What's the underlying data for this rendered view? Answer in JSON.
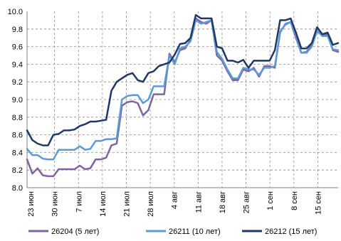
{
  "chart_data": {
    "type": "line",
    "title": "",
    "xlabel": "",
    "ylabel": "",
    "ylim": [
      8.0,
      10.0
    ],
    "yticks": [
      "8.0",
      "8.2",
      "8.4",
      "8.6",
      "8.8",
      "9.0",
      "9.2",
      "9.4",
      "9.6",
      "9.8",
      "10.0"
    ],
    "x_tick_labels": [
      "23 июн",
      "30 июн",
      "7 июл",
      "14 июл",
      "21 июл",
      "28 июл",
      "4 авг",
      "11 авг",
      "18 авг",
      "25 авг",
      "1 сен",
      "8 сен",
      "15 сен"
    ],
    "grid": true,
    "legend_position": "bottom",
    "x_points": 60,
    "series": [
      {
        "name": "26204 (5 лет)",
        "color": "#8064a2",
        "values": [
          8.32,
          8.16,
          8.22,
          8.14,
          8.13,
          8.13,
          8.21,
          8.21,
          8.21,
          8.21,
          8.25,
          8.21,
          8.22,
          8.32,
          8.32,
          8.34,
          8.48,
          8.5,
          8.93,
          8.97,
          8.98,
          8.96,
          8.82,
          8.88,
          9.06,
          9.06,
          9.06,
          9.52,
          9.42,
          9.56,
          9.58,
          9.68,
          9.92,
          9.88,
          9.86,
          9.9,
          9.5,
          9.44,
          9.32,
          9.22,
          9.22,
          9.34,
          9.32,
          9.36,
          9.26,
          9.38,
          9.38,
          9.36,
          9.77,
          9.85,
          9.88,
          9.7,
          9.53,
          9.54,
          9.62,
          9.78,
          9.72,
          9.74,
          9.56,
          9.54
        ]
      },
      {
        "name": "26211 (10 лет)",
        "color": "#5b9bd5",
        "values": [
          8.44,
          8.37,
          8.37,
          8.33,
          8.32,
          8.32,
          8.43,
          8.43,
          8.43,
          8.43,
          8.47,
          8.43,
          8.44,
          8.53,
          8.53,
          8.55,
          8.55,
          8.56,
          9.0,
          9.04,
          9.05,
          9.05,
          8.96,
          9.0,
          9.15,
          9.15,
          9.15,
          9.5,
          9.4,
          9.58,
          9.6,
          9.66,
          9.9,
          9.86,
          9.88,
          9.9,
          9.54,
          9.46,
          9.34,
          9.24,
          9.24,
          9.36,
          9.34,
          9.34,
          9.28,
          9.36,
          9.36,
          9.38,
          9.76,
          9.86,
          9.88,
          9.72,
          9.53,
          9.53,
          9.6,
          9.78,
          9.72,
          9.72,
          9.57,
          9.56
        ]
      },
      {
        "name": "26212 (15 лет)",
        "color": "#1f3864",
        "values": [
          8.65,
          8.54,
          8.5,
          8.48,
          8.48,
          8.6,
          8.61,
          8.65,
          8.65,
          8.66,
          8.7,
          8.72,
          8.75,
          8.75,
          8.76,
          8.77,
          9.1,
          9.2,
          9.24,
          9.28,
          9.3,
          9.22,
          9.2,
          9.3,
          9.32,
          9.38,
          9.4,
          9.42,
          9.51,
          9.63,
          9.64,
          9.7,
          9.96,
          9.92,
          9.92,
          9.92,
          9.6,
          9.58,
          9.44,
          9.44,
          9.42,
          9.45,
          9.36,
          9.44,
          9.44,
          9.44,
          9.44,
          9.56,
          9.9,
          9.9,
          9.92,
          9.76,
          9.58,
          9.58,
          9.64,
          9.82,
          9.74,
          9.76,
          9.62,
          9.64
        ]
      }
    ]
  }
}
